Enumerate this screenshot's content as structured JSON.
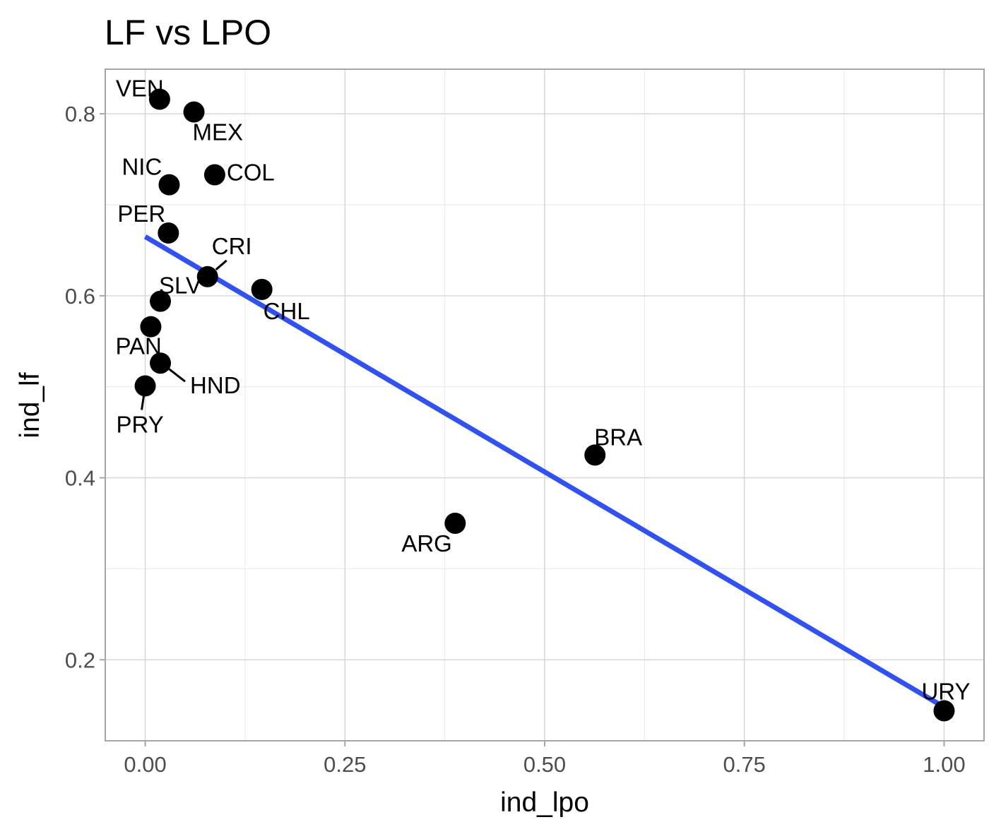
{
  "chart_data": {
    "type": "scatter",
    "title": "LF vs LPO",
    "xlabel": "ind_lpo",
    "ylabel": "ind_lf",
    "xlim": [
      -0.05,
      1.05
    ],
    "ylim": [
      0.111,
      0.849
    ],
    "x_ticks": [
      0.0,
      0.25,
      0.5,
      0.75,
      1.0
    ],
    "x_tick_labels": [
      "0.00",
      "0.25",
      "0.50",
      "0.75",
      "1.00"
    ],
    "y_ticks": [
      0.2,
      0.4,
      0.6,
      0.8
    ],
    "y_tick_labels": [
      "0.2",
      "0.4",
      "0.6",
      "0.8"
    ],
    "grid": true,
    "trend_line": {
      "type": "linear",
      "color": "#3050f8",
      "x": [
        0.0,
        1.0
      ],
      "y": [
        0.665,
        0.148
      ]
    },
    "points": [
      {
        "label": "VEN",
        "x": 0.018,
        "y": 0.816
      },
      {
        "label": "MEX",
        "x": 0.061,
        "y": 0.802
      },
      {
        "label": "COL",
        "x": 0.087,
        "y": 0.733
      },
      {
        "label": "NIC",
        "x": 0.03,
        "y": 0.722
      },
      {
        "label": "PER",
        "x": 0.029,
        "y": 0.669
      },
      {
        "label": "CRI",
        "x": 0.078,
        "y": 0.621
      },
      {
        "label": "CHL",
        "x": 0.146,
        "y": 0.607
      },
      {
        "label": "SLV",
        "x": 0.019,
        "y": 0.594
      },
      {
        "label": "PAN",
        "x": 0.007,
        "y": 0.566
      },
      {
        "label": "HND",
        "x": 0.019,
        "y": 0.526
      },
      {
        "label": "PRY",
        "x": 0.0,
        "y": 0.501
      },
      {
        "label": "BRA",
        "x": 0.563,
        "y": 0.425
      },
      {
        "label": "ARG",
        "x": 0.388,
        "y": 0.35
      },
      {
        "label": "URY",
        "x": 1.0,
        "y": 0.144
      }
    ]
  }
}
